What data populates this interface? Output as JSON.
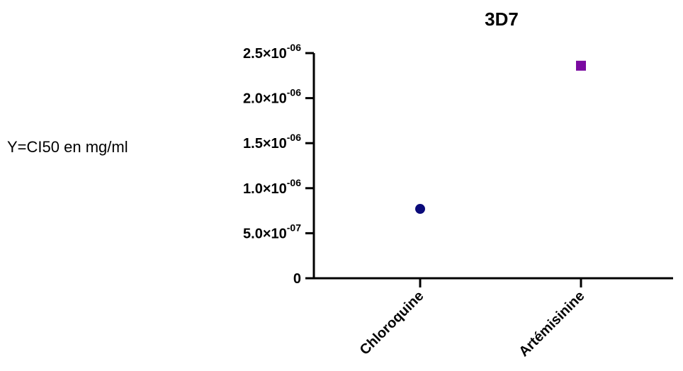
{
  "chart_data": {
    "type": "scatter",
    "title": "3D7",
    "ylabel": "Y=CI50 en mg/ml",
    "xlabel": "",
    "categories": [
      "Chloroquine",
      "Artémisinine"
    ],
    "values": [
      7.7e-07,
      2.36e-06
    ],
    "ylim": [
      0,
      2.5e-06
    ],
    "yticks": [
      {
        "value": 0,
        "mantissa": "0",
        "times": "",
        "base": "",
        "exponent": ""
      },
      {
        "value": 5e-07,
        "mantissa": "5.0",
        "times": "×",
        "base": "10",
        "exponent": "-07"
      },
      {
        "value": 1e-06,
        "mantissa": "1.0",
        "times": "×",
        "base": "10",
        "exponent": "-06"
      },
      {
        "value": 1.5e-06,
        "mantissa": "1.5",
        "times": "×",
        "base": "10",
        "exponent": "-06"
      },
      {
        "value": 2e-06,
        "mantissa": "2.0",
        "times": "×",
        "base": "10",
        "exponent": "-06"
      },
      {
        "value": 2.5e-06,
        "mantissa": "2.5",
        "times": "×",
        "base": "10",
        "exponent": "-06"
      }
    ],
    "markers": [
      "circle",
      "square"
    ],
    "colors": [
      "#0a0a7a",
      "#7a0aa0"
    ],
    "grid": false,
    "legend": "none"
  }
}
